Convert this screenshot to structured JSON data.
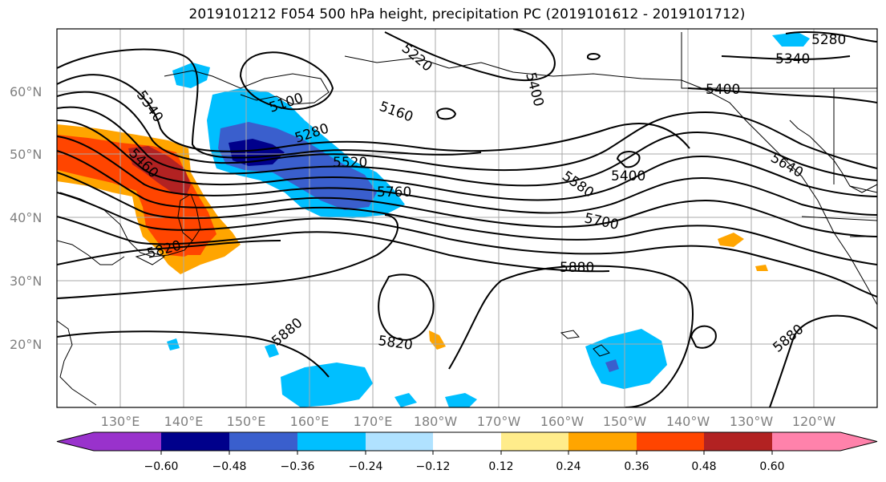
{
  "title": "2019101212 F054 500 hPa height, precipitation PC (2019101612 - 2019101712)",
  "lat_labels": [
    "60°N",
    "50°N",
    "40°N",
    "30°N",
    "20°N"
  ],
  "lon_labels": [
    "130°E",
    "140°E",
    "150°E",
    "160°E",
    "170°E",
    "180°W",
    "170°W",
    "160°W",
    "150°W",
    "140°W",
    "130°W",
    "120°W"
  ],
  "colorbar": {
    "colors": [
      "#9932cc",
      "#00008b",
      "#3a5fcd",
      "#00bfff",
      "#b0e2ff",
      "#ffffff",
      "#ffec8b",
      "#ffa500",
      "#ff4500",
      "#b22222",
      "#ff82ab"
    ],
    "tick_labels": [
      "−0.60",
      "−0.48",
      "−0.36",
      "−0.24",
      "−0.12",
      "0.12",
      "0.24",
      "0.36",
      "0.48",
      "0.60"
    ]
  },
  "contour_labels": [
    "5220",
    "5400",
    "5280",
    "5340",
    "5400",
    "5340",
    "5100",
    "5160",
    "5280",
    "5460",
    "5520",
    "5760",
    "5580",
    "5400",
    "5700",
    "5640",
    "5820",
    "5880",
    "5880",
    "5820",
    "5880"
  ]
}
